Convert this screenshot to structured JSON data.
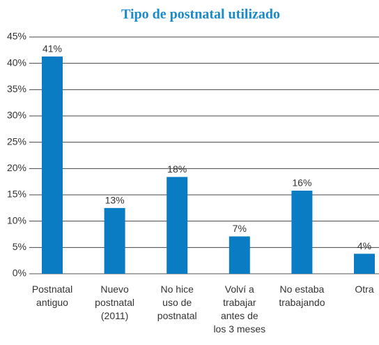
{
  "chart_data": {
    "type": "bar",
    "title": "Tipo de postnatal utilizado",
    "categories": [
      "Postnatal\nantiguo",
      "Nuevo\npostnatal\n(2011)",
      "No hice\nuso de\npostnatal",
      "Volví a\ntrabajar\nantes de\nlos 3 meses",
      "No estaba\ntrabajando",
      "Otra"
    ],
    "values": [
      41.3,
      12.5,
      18.4,
      7.1,
      15.8,
      3.8
    ],
    "value_labels": [
      "41%",
      "13%",
      "18%",
      "7%",
      "16%",
      "4%"
    ],
    "color": "#0a7cc4",
    "ylim": [
      0,
      45
    ],
    "yticks": [
      {
        "value": 0,
        "label": "0%"
      },
      {
        "value": 5,
        "label": "5%"
      },
      {
        "value": 10,
        "label": "10%"
      },
      {
        "value": 15,
        "label": "15%"
      },
      {
        "value": 20,
        "label": "20%"
      },
      {
        "value": 25,
        "label": "25%"
      },
      {
        "value": 30,
        "label": "30%"
      },
      {
        "value": 35,
        "label": "35%"
      },
      {
        "value": 40,
        "label": "40%"
      },
      {
        "value": 45,
        "label": "45%"
      }
    ],
    "grid": true
  }
}
